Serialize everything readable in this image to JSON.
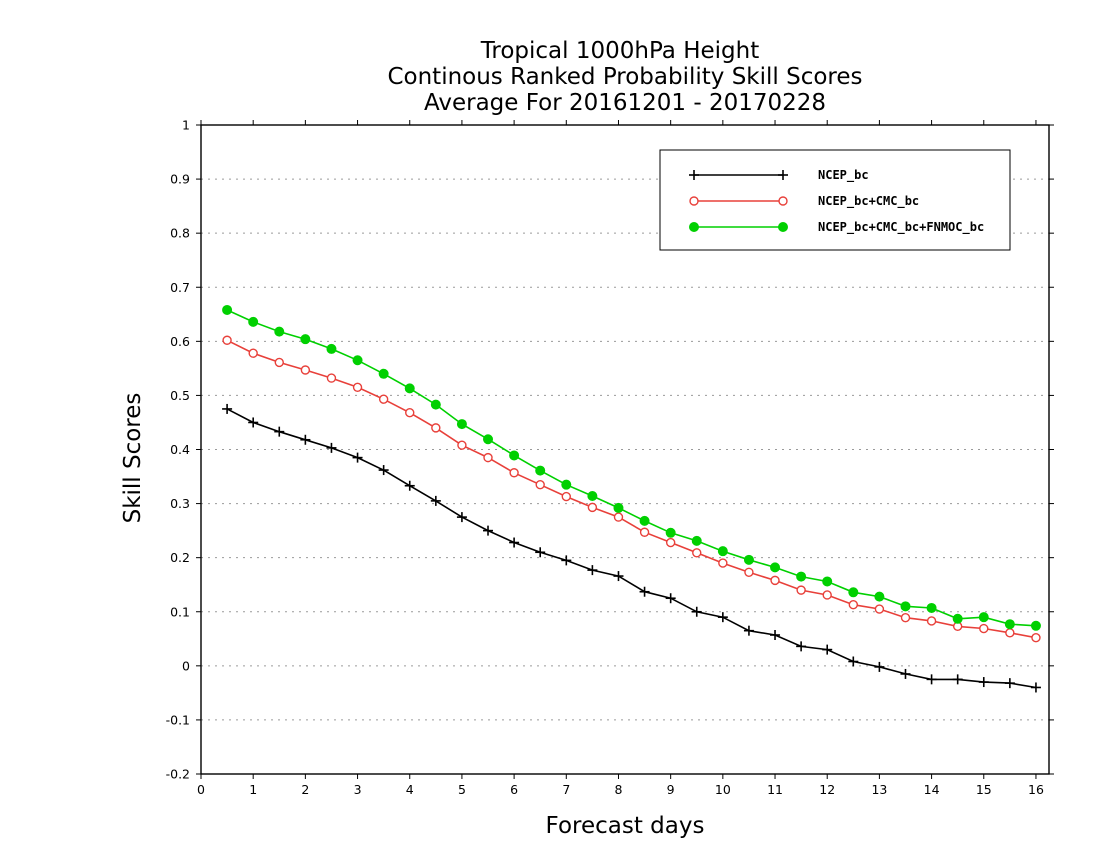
{
  "chart_data": {
    "type": "line",
    "title": [
      "Tropical 1000hPa Height",
      "Continous Ranked Probability Skill Scores",
      "Average For 20161201 - 20170228"
    ],
    "xlabel": "Forecast days",
    "ylabel": "Skill Scores",
    "xlim": [
      0,
      16.25
    ],
    "ylim": [
      -0.2,
      1
    ],
    "xticks": [
      "0",
      "1",
      "2",
      "3",
      "4",
      "5",
      "6",
      "7",
      "8",
      "9",
      "10",
      "11",
      "12",
      "13",
      "14",
      "15",
      "16"
    ],
    "yticks": [
      "-0.2",
      "-0.1",
      "0",
      "0.1",
      "0.2",
      "0.3",
      "0.4",
      "0.5",
      "0.6",
      "0.7",
      "0.8",
      "0.9",
      "1"
    ],
    "grid": true,
    "legend_position": "top-right",
    "x": [
      0.5,
      1,
      1.5,
      2,
      2.5,
      3,
      3.5,
      4,
      4.5,
      5,
      5.5,
      6,
      6.5,
      7,
      7.5,
      8,
      8.5,
      9,
      9.5,
      10,
      10.5,
      11,
      11.5,
      12,
      12.5,
      13,
      13.5,
      14,
      14.5,
      15,
      15.5,
      16
    ],
    "series": [
      {
        "name": "NCEP_bc",
        "color": "#000000",
        "marker": "plus",
        "values": [
          0.475,
          0.45,
          0.433,
          0.418,
          0.403,
          0.385,
          0.362,
          0.333,
          0.305,
          0.275,
          0.25,
          0.228,
          0.21,
          0.195,
          0.177,
          0.166,
          0.137,
          0.125,
          0.1,
          0.09,
          0.065,
          0.057,
          0.036,
          0.03,
          0.008,
          -0.002,
          -0.015,
          -0.025,
          -0.025,
          -0.03,
          -0.032,
          -0.04
        ]
      },
      {
        "name": "NCEP_bc+CMC_bc",
        "color": "#e8403a",
        "marker": "open-circle",
        "values": [
          0.602,
          0.578,
          0.561,
          0.547,
          0.532,
          0.515,
          0.493,
          0.468,
          0.44,
          0.408,
          0.385,
          0.357,
          0.335,
          0.313,
          0.293,
          0.275,
          0.247,
          0.228,
          0.209,
          0.19,
          0.173,
          0.158,
          0.14,
          0.131,
          0.113,
          0.105,
          0.089,
          0.083,
          0.073,
          0.069,
          0.061,
          0.052
        ]
      },
      {
        "name": "NCEP_bc+CMC_bc+FNMOC_bc",
        "color": "#00d000",
        "marker": "filled-circle",
        "values": [
          0.658,
          0.636,
          0.618,
          0.604,
          0.586,
          0.565,
          0.54,
          0.513,
          0.483,
          0.447,
          0.419,
          0.389,
          0.361,
          0.335,
          0.314,
          0.292,
          0.268,
          0.246,
          0.231,
          0.212,
          0.196,
          0.182,
          0.165,
          0.156,
          0.136,
          0.128,
          0.11,
          0.107,
          0.087,
          0.09,
          0.077,
          0.074
        ]
      }
    ]
  }
}
